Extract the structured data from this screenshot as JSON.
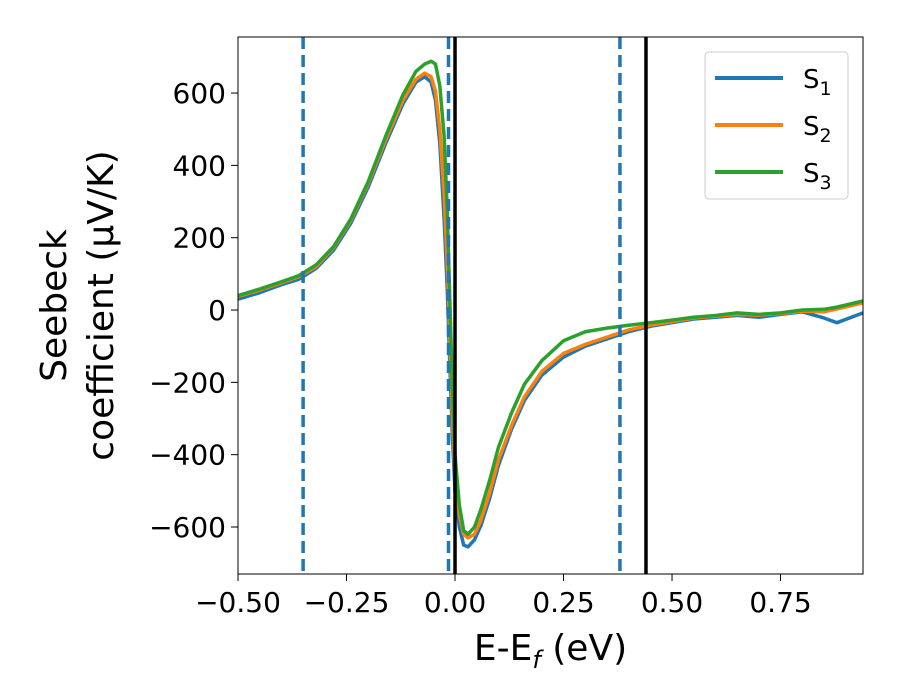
{
  "chart_data": {
    "type": "line",
    "xlabel": "E-E",
    "xlabel_sub": "f",
    "xlabel_unit": " (eV)",
    "ylabel_line1": "Seebeck",
    "ylabel_line2": "coefficient  (μV/K)",
    "xlim": [
      -0.5,
      0.94
    ],
    "ylim": [
      -730,
      755
    ],
    "x_ticks": [
      {
        "value": -0.5,
        "label": "−0.50"
      },
      {
        "value": -0.25,
        "label": "−0.25"
      },
      {
        "value": 0.0,
        "label": "0.00"
      },
      {
        "value": 0.25,
        "label": "0.25"
      },
      {
        "value": 0.5,
        "label": "0.50"
      },
      {
        "value": 0.75,
        "label": "0.75"
      }
    ],
    "y_ticks": [
      {
        "value": 600,
        "label": "600"
      },
      {
        "value": 400,
        "label": "400"
      },
      {
        "value": 200,
        "label": "200"
      },
      {
        "value": 0,
        "label": "0"
      },
      {
        "value": -200,
        "label": "−200"
      },
      {
        "value": -400,
        "label": "−400"
      },
      {
        "value": -600,
        "label": "−600"
      }
    ],
    "legend_position": "top-right",
    "series": [
      {
        "name": "S",
        "sub": "1",
        "color": "#1f77b4",
        "x": [
          -0.5,
          -0.45,
          -0.4,
          -0.36,
          -0.32,
          -0.28,
          -0.24,
          -0.2,
          -0.16,
          -0.12,
          -0.09,
          -0.07,
          -0.055,
          -0.045,
          -0.035,
          -0.025,
          -0.018,
          -0.012,
          -0.006,
          0.0,
          0.01,
          0.02,
          0.03,
          0.045,
          0.06,
          0.08,
          0.1,
          0.13,
          0.16,
          0.2,
          0.25,
          0.3,
          0.35,
          0.4,
          0.45,
          0.5,
          0.55,
          0.6,
          0.65,
          0.7,
          0.75,
          0.8,
          0.85,
          0.88,
          0.94
        ],
        "y": [
          30,
          48,
          70,
          85,
          115,
          165,
          240,
          340,
          460,
          570,
          630,
          645,
          630,
          580,
          460,
          250,
          60,
          -150,
          -350,
          -500,
          -600,
          -650,
          -655,
          -635,
          -595,
          -520,
          -430,
          -330,
          -250,
          -180,
          -130,
          -100,
          -80,
          -60,
          -45,
          -35,
          -25,
          -20,
          -15,
          -20,
          -12,
          -5,
          -22,
          -35,
          -8
        ]
      },
      {
        "name": "S",
        "sub": "2",
        "color": "#ff7f0e",
        "x": [
          -0.5,
          -0.45,
          -0.4,
          -0.36,
          -0.32,
          -0.28,
          -0.24,
          -0.2,
          -0.16,
          -0.12,
          -0.09,
          -0.07,
          -0.055,
          -0.045,
          -0.035,
          -0.025,
          -0.018,
          -0.012,
          -0.006,
          0.0,
          0.01,
          0.02,
          0.03,
          0.045,
          0.06,
          0.08,
          0.1,
          0.13,
          0.16,
          0.2,
          0.25,
          0.3,
          0.35,
          0.4,
          0.45,
          0.5,
          0.55,
          0.6,
          0.65,
          0.7,
          0.75,
          0.8,
          0.85,
          0.88,
          0.94
        ],
        "y": [
          38,
          55,
          75,
          92,
          120,
          172,
          248,
          350,
          470,
          580,
          638,
          655,
          645,
          605,
          500,
          320,
          130,
          -80,
          -290,
          -450,
          -565,
          -620,
          -630,
          -620,
          -580,
          -505,
          -415,
          -320,
          -240,
          -170,
          -120,
          -95,
          -75,
          -55,
          -42,
          -32,
          -22,
          -17,
          -12,
          -14,
          -10,
          -3,
          -5,
          3,
          20
        ]
      },
      {
        "name": "S",
        "sub": "3",
        "color": "#2ca02c",
        "x": [
          -0.5,
          -0.45,
          -0.4,
          -0.36,
          -0.32,
          -0.28,
          -0.24,
          -0.2,
          -0.16,
          -0.12,
          -0.09,
          -0.07,
          -0.055,
          -0.045,
          -0.035,
          -0.025,
          -0.018,
          -0.012,
          -0.006,
          0.0,
          0.01,
          0.02,
          0.03,
          0.045,
          0.06,
          0.08,
          0.1,
          0.13,
          0.16,
          0.2,
          0.25,
          0.3,
          0.35,
          0.4,
          0.45,
          0.5,
          0.55,
          0.6,
          0.65,
          0.7,
          0.75,
          0.8,
          0.85,
          0.88,
          0.94
        ],
        "y": [
          40,
          58,
          78,
          95,
          125,
          175,
          252,
          355,
          480,
          595,
          660,
          680,
          688,
          680,
          620,
          480,
          280,
          30,
          -220,
          -400,
          -540,
          -610,
          -620,
          -600,
          -550,
          -470,
          -380,
          -285,
          -205,
          -140,
          -85,
          -60,
          -50,
          -42,
          -35,
          -28,
          -20,
          -15,
          -8,
          -12,
          -8,
          0,
          2,
          8,
          25
        ]
      }
    ],
    "vlines": [
      {
        "x": -0.35,
        "color": "#1f77b4",
        "style": "dashed"
      },
      {
        "x": -0.015,
        "color": "#1f77b4",
        "style": "dashed"
      },
      {
        "x": 0.38,
        "color": "#1f77b4",
        "style": "dashed"
      },
      {
        "x": 0.0,
        "color": "#000000",
        "style": "solid"
      },
      {
        "x": 0.44,
        "color": "#000000",
        "style": "solid"
      }
    ]
  }
}
